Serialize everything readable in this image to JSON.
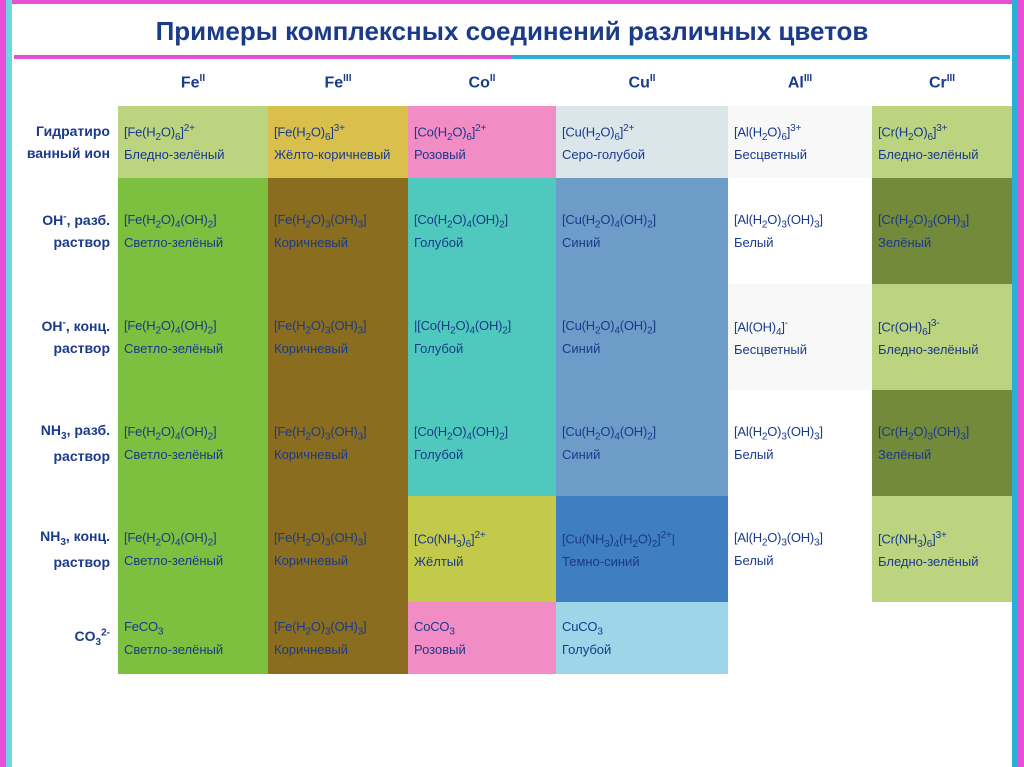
{
  "title": "Примеры комплексных соединений различных цветов",
  "columns": [
    "Fe^II",
    "Fe^III",
    "Co^II",
    "Cu^II",
    "Al^III",
    "Cr^III"
  ],
  "row_labels": [
    [
      "Гидратиро",
      "ванный ион"
    ],
    [
      "OH⁻, разб.",
      "раствор"
    ],
    [
      "OH⁻, конц.",
      "раствор"
    ],
    [
      "NH₃, разб.",
      "раствор"
    ],
    [
      "NH₃, конц.",
      "раствор"
    ],
    [
      "CO₃²⁻",
      ""
    ]
  ],
  "cells": [
    [
      {
        "formula": "[Fe(H₂O)₆]²⁺",
        "color_name": "Бледно-зелёный",
        "bg": "#bcd37f"
      },
      {
        "formula": "[Fe(H₂O)₆]³⁺",
        "color_name": "Жёлто-коричневый",
        "bg": "#d9c04d"
      },
      {
        "formula": "[Co(H₂O)₆]²⁺",
        "color_name": "Розовый",
        "bg": "#f28cc4"
      },
      {
        "formula": "[Cu(H₂O)₆]²⁺",
        "color_name": "Серо-голубой",
        "bg": "#dbe6ea"
      },
      {
        "formula": "[Al(H₂O)₆]³⁺",
        "color_name": "Бесцветный",
        "bg": "#f8f8f8"
      },
      {
        "formula": "[Cr(H₂O)₆]³⁺",
        "color_name": "Бледно-зелёный",
        "bg": "#bcd37f"
      }
    ],
    [
      {
        "formula": "[Fe(H₂O)₄(OH)₂]",
        "color_name": "Светло-зелёный",
        "bg": "#7dbf3e"
      },
      {
        "formula": "[Fe(H₂O)₃(OH)₃]",
        "color_name": "Коричневый",
        "bg": "#8a6d1f"
      },
      {
        "formula": "[Co(H₂O)₄(OH)₂]",
        "color_name": "Голубой",
        "bg": "#4fc9bd"
      },
      {
        "formula": "[Cu(H₂O)₄(OH)₂]",
        "color_name": "Синий",
        "bg": "#6d9cc9"
      },
      {
        "formula": "[Al(H₂O)₃(OH)₃]",
        "color_name": "Белый",
        "bg": "#ffffff"
      },
      {
        "formula": "[Cr(H₂O)₃(OH)₃]",
        "color_name": "Зелёный",
        "bg": "#728a3a"
      }
    ],
    [
      {
        "formula": "[Fe(H₂O)₄(OH)₂]",
        "color_name": "Светло-зелёный",
        "bg": "#7dbf3e"
      },
      {
        "formula": "[Fe(H₂O)₃(OH)₃]",
        "color_name": "Коричневый",
        "bg": "#8a6d1f"
      },
      {
        "formula": "|[Co(H₂O)₄(OH)₂]",
        "color_name": "Голубой",
        "bg": "#4fc9bd"
      },
      {
        "formula": "[Cu(H₂O)₄(OH)₂]",
        "color_name": "Синий",
        "bg": "#6d9cc9"
      },
      {
        "formula": "[Al(OH)₄]⁻",
        "color_name": "Бесцветный",
        "bg": "#f8f8f8"
      },
      {
        "formula": "[Cr(OH)₆]³⁻",
        "color_name": "Бледно-зелёный",
        "bg": "#bcd37f"
      }
    ],
    [
      {
        "formula": "[Fe(H₂O)₄(OH)₂]",
        "color_name": "Светло-зелёный",
        "bg": "#7dbf3e"
      },
      {
        "formula": "[Fe(H₂O)₃(OH)₃]",
        "color_name": "Коричневый",
        "bg": "#8a6d1f"
      },
      {
        "formula": "[Co(H₂O)₄(OH)₂]",
        "color_name": "Голубой",
        "bg": "#4fc9bd"
      },
      {
        "formula": "[Cu(H₂O)₄(OH)₂]",
        "color_name": "Синий",
        "bg": "#6d9cc9"
      },
      {
        "formula": "[Al(H₂O)₃(OH)₃]",
        "color_name": "Белый",
        "bg": "#ffffff"
      },
      {
        "formula": "[Cr(H₂O)₃(OH)₃]",
        "color_name": "Зелёный",
        "bg": "#728a3a"
      }
    ],
    [
      {
        "formula": "[Fe(H₂O)₄(OH)₂]",
        "color_name": "Светло-зелёный",
        "bg": "#7dbf3e"
      },
      {
        "formula": "[Fe(H₂O)₃(OH)₃]",
        "color_name": "Коричневый",
        "bg": "#8a6d1f"
      },
      {
        "formula": "[Co(NH₃)₆]²⁺",
        "color_name": "Жёлтый",
        "bg": "#c3c94a"
      },
      {
        "formula": "[Cu(NH₃)₄(H₂O)₂]²⁺|",
        "color_name": "Темно-синий",
        "bg": "#3f7ec0"
      },
      {
        "formula": "[Al(H₂O)₃(OH)₃]",
        "color_name": "Белый",
        "bg": "#ffffff"
      },
      {
        "formula": "[Cr(NH₃)₆]³⁺",
        "color_name": "Бледно-зелёный",
        "bg": "#bcd37f"
      }
    ],
    [
      {
        "formula": "FeCO₃",
        "color_name": "Светло-зелёный",
        "bg": "#7dbf3e"
      },
      {
        "formula": "[Fe(H₂O)₃(OH)₃]",
        "color_name": "Коричневый",
        "bg": "#8a6d1f"
      },
      {
        "formula": "CoCO₃",
        "color_name": "Розовый",
        "bg": "#f28cc4"
      },
      {
        "formula": "CuCO₃",
        "color_name": "Голубой",
        "bg": "#9cd6e8"
      },
      {
        "formula": "",
        "color_name": "",
        "bg": "transparent"
      },
      {
        "formula": "",
        "color_name": "",
        "bg": "transparent"
      }
    ]
  ],
  "row_heights": [
    "rh",
    "rh2",
    "rh2",
    "rh2",
    "rh2",
    "rh"
  ]
}
